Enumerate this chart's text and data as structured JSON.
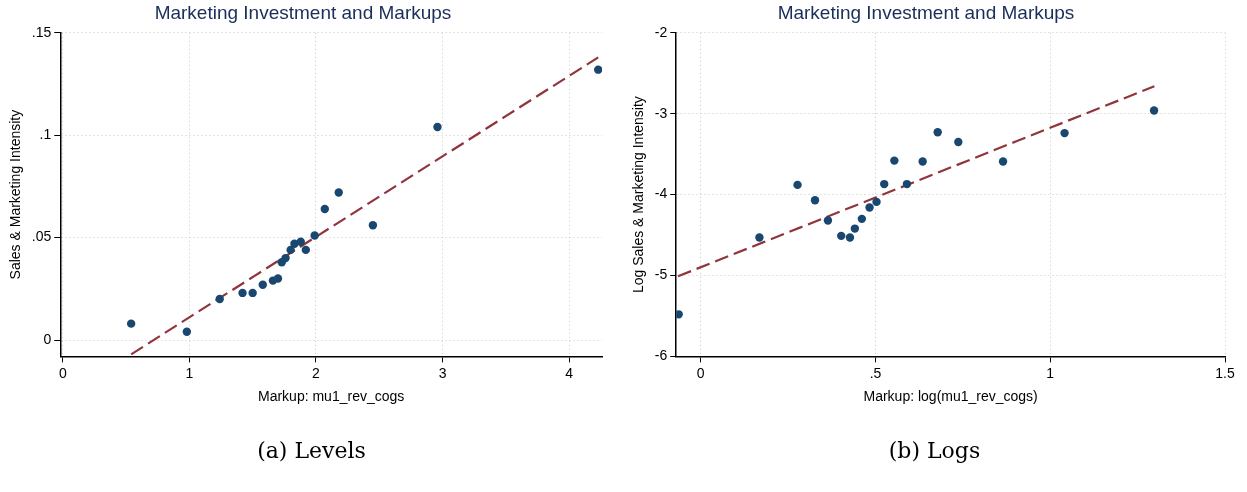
{
  "chart_data": [
    {
      "type": "scatter",
      "title": "Marketing Investment and Markups",
      "xlabel": "Markup: mu1_rev_cogs",
      "ylabel": "Sales & Marketing Intensity",
      "annotations": [
        "(a) Levels"
      ],
      "grid": true,
      "xlim": [
        -0.02,
        4.26
      ],
      "ylim": [
        -0.008,
        0.15
      ],
      "xticks": [
        0,
        1,
        2,
        3,
        4
      ],
      "yticks": [
        {
          "value": 0,
          "label": "0"
        },
        {
          "value": 0.05,
          "label": ".05"
        },
        {
          "value": 0.1,
          "label": ".1"
        },
        {
          "value": 0.15,
          "label": ".15"
        }
      ],
      "series": [
        {
          "marker": "circle",
          "color": "#1a476f",
          "x": [
            0.54,
            0.98,
            1.24,
            1.42,
            1.5,
            1.58,
            1.66,
            1.7,
            1.73,
            1.76,
            1.8,
            1.83,
            1.88,
            1.92,
            1.99,
            2.07,
            2.18,
            2.45,
            2.96,
            4.23
          ],
          "values": [
            0.008,
            0.004,
            0.02,
            0.023,
            0.023,
            0.027,
            0.029,
            0.03,
            0.038,
            0.04,
            0.044,
            0.047,
            0.048,
            0.044,
            0.051,
            0.064,
            0.072,
            0.056,
            0.104,
            0.132
          ]
        },
        {
          "type": "line",
          "color": "#90353b",
          "line_style": "dashed",
          "x": [
            0.54,
            4.23
          ],
          "values": [
            -0.007,
            0.138
          ]
        }
      ]
    },
    {
      "type": "scatter",
      "title": "Marketing Investment and Markups",
      "xlabel": "Markup: log(mu1_rev_cogs)",
      "ylabel": "Log Sales & Marketing Intensity",
      "annotations": [
        "(b) Logs"
      ],
      "grid": true,
      "xlim": [
        -0.07,
        1.5
      ],
      "ylim": [
        -6,
        -2
      ],
      "xticks": [
        {
          "value": 0,
          "label": "0"
        },
        {
          "value": 0.5,
          "label": ".5"
        },
        {
          "value": 1,
          "label": "1"
        },
        {
          "value": 1.5,
          "label": "1.5"
        }
      ],
      "yticks": [
        -6,
        -5,
        -4,
        -3,
        -2
      ],
      "series": [
        {
          "marker": "circle",
          "color": "#1a476f",
          "x": [
            -0.063,
            0.168,
            0.277,
            0.327,
            0.364,
            0.402,
            0.427,
            0.441,
            0.461,
            0.483,
            0.503,
            0.525,
            0.554,
            0.59,
            0.635,
            0.678,
            0.737,
            0.865,
            1.041,
            1.297
          ],
          "values": [
            -5.48,
            -4.53,
            -3.88,
            -4.07,
            -4.32,
            -4.51,
            -4.53,
            -4.42,
            -4.3,
            -4.16,
            -4.09,
            -3.87,
            -3.58,
            -3.87,
            -3.59,
            -3.23,
            -3.35,
            -3.59,
            -3.24,
            -2.96
          ]
        },
        {
          "type": "line",
          "color": "#90353b",
          "line_style": "dashed",
          "x": [
            -0.065,
            1.298
          ],
          "values": [
            -5.01,
            -2.66
          ]
        }
      ]
    }
  ]
}
